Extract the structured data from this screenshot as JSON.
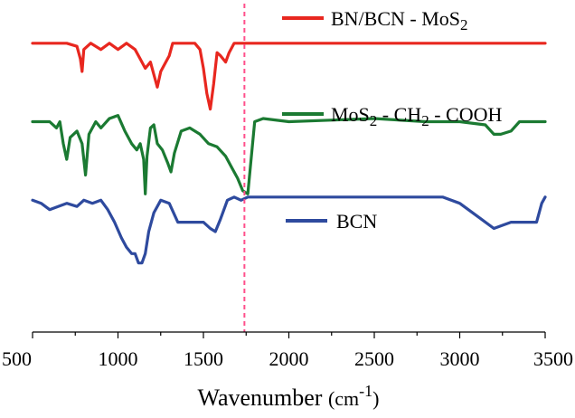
{
  "chart_data": {
    "type": "line",
    "title": "",
    "xlabel": "Wavenumber (cm-1)",
    "xlabel_parts": {
      "main": "Wavenumber ",
      "open": "(cm",
      "sup": "-1",
      "close": ")"
    },
    "ylabel": "",
    "xlim": [
      500,
      3500
    ],
    "ylim": [
      0,
      10
    ],
    "grid": false,
    "legend": "inline, above each trace",
    "x_ticks": [
      500,
      1000,
      1500,
      2000,
      2500,
      3000,
      3500
    ],
    "x_tick_labels": [
      "500",
      "1000",
      "1500",
      "2000",
      "2500",
      "3000",
      "3500"
    ],
    "reference_line": {
      "x": 1740,
      "color": "#ff4f8b",
      "style": "dashed"
    },
    "series": [
      {
        "name": "BN/BCN - MoS2",
        "label_parts": [
          {
            "text": "BN/BCN - MoS",
            "sub": false
          },
          {
            "text": "2",
            "sub": true
          }
        ],
        "color": "#e8271f",
        "x": [
          500,
          700,
          760,
          780,
          790,
          800,
          840,
          900,
          950,
          1000,
          1050,
          1100,
          1130,
          1160,
          1190,
          1210,
          1230,
          1250,
          1280,
          1300,
          1320,
          1360,
          1400,
          1450,
          1480,
          1500,
          1520,
          1540,
          1560,
          1580,
          1600,
          1630,
          1650,
          1680,
          1720,
          1760,
          1800,
          2000,
          2500,
          3000,
          3500
        ],
        "y": [
          9.2,
          9.2,
          9.1,
          8.7,
          8.3,
          9.0,
          9.2,
          9.0,
          9.2,
          9.0,
          9.2,
          9.0,
          8.7,
          8.4,
          8.6,
          8.2,
          7.8,
          8.3,
          8.6,
          8.8,
          9.2,
          9.2,
          9.2,
          9.2,
          9.0,
          8.4,
          7.6,
          7.1,
          7.9,
          8.9,
          8.8,
          8.6,
          8.9,
          9.2,
          9.2,
          9.2,
          9.2,
          9.2,
          9.2,
          9.2,
          9.2
        ]
      },
      {
        "name": "MoS2 - CH2 - COOH",
        "label_parts": [
          {
            "text": "MoS",
            "sub": false
          },
          {
            "text": "2",
            "sub": true
          },
          {
            "text": " - CH",
            "sub": false
          },
          {
            "text": "2",
            "sub": true
          },
          {
            "text": " - COOH",
            "sub": false
          }
        ],
        "color": "#1b7a32",
        "x": [
          500,
          600,
          640,
          660,
          680,
          700,
          720,
          760,
          790,
          810,
          830,
          870,
          900,
          950,
          1000,
          1040,
          1080,
          1110,
          1130,
          1150,
          1160,
          1170,
          1190,
          1210,
          1230,
          1260,
          1290,
          1310,
          1330,
          1370,
          1420,
          1480,
          1530,
          1580,
          1630,
          1670,
          1700,
          1730,
          1760,
          1800,
          1850,
          2000,
          2500,
          2800,
          3000,
          3150,
          3200,
          3240,
          3300,
          3350,
          3500
        ],
        "y": [
          6.7,
          6.7,
          6.5,
          6.7,
          6.0,
          5.5,
          6.2,
          6.4,
          6.0,
          5.0,
          6.3,
          6.7,
          6.5,
          6.8,
          6.9,
          6.4,
          6.0,
          5.8,
          6.0,
          5.5,
          4.4,
          5.6,
          6.5,
          6.6,
          6.0,
          5.8,
          5.4,
          5.1,
          5.7,
          6.4,
          6.5,
          6.3,
          6.0,
          5.9,
          5.6,
          5.2,
          4.9,
          4.5,
          4.4,
          6.7,
          6.8,
          6.7,
          6.8,
          6.7,
          6.7,
          6.6,
          6.3,
          6.3,
          6.4,
          6.7,
          6.7
        ]
      },
      {
        "name": "BCN",
        "label_parts": [
          {
            "text": "BCN",
            "sub": false
          }
        ],
        "color": "#2e4a9e",
        "x": [
          500,
          550,
          600,
          650,
          700,
          760,
          800,
          850,
          900,
          940,
          980,
          1020,
          1050,
          1080,
          1100,
          1120,
          1140,
          1160,
          1180,
          1210,
          1250,
          1300,
          1350,
          1400,
          1450,
          1500,
          1540,
          1570,
          1600,
          1640,
          1680,
          1720,
          1760,
          2000,
          2500,
          2900,
          3000,
          3100,
          3200,
          3250,
          3300,
          3400,
          3450,
          3480,
          3500
        ],
        "y": [
          4.2,
          4.1,
          3.9,
          4.0,
          4.1,
          4.0,
          4.2,
          4.1,
          4.2,
          3.9,
          3.5,
          3.0,
          2.7,
          2.5,
          2.5,
          2.2,
          2.2,
          2.5,
          3.2,
          3.8,
          4.2,
          4.1,
          3.5,
          3.5,
          3.5,
          3.5,
          3.3,
          3.2,
          3.6,
          4.2,
          4.3,
          4.2,
          4.3,
          4.3,
          4.3,
          4.3,
          4.1,
          3.7,
          3.3,
          3.4,
          3.5,
          3.5,
          3.5,
          4.1,
          4.3
        ]
      }
    ]
  }
}
